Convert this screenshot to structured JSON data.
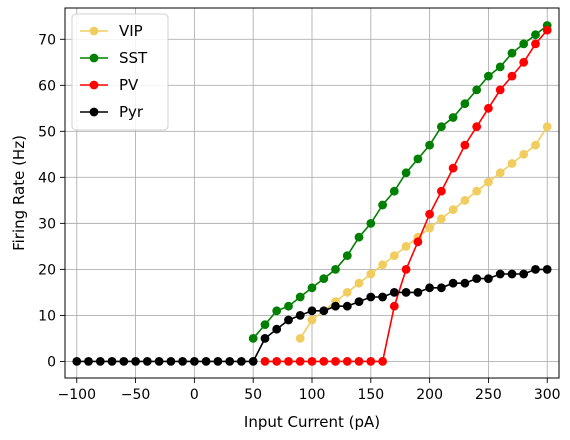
{
  "chart_data": {
    "type": "line",
    "xlabel": "Input Current (pA)",
    "ylabel": "Firing Rate (Hz)",
    "xlim": [
      -110,
      310
    ],
    "ylim": [
      -3.6,
      76.8
    ],
    "xticks": [
      -100,
      -50,
      0,
      50,
      100,
      150,
      200,
      250,
      300
    ],
    "xtick_labels": [
      "−100",
      "−50",
      "0",
      "50",
      "100",
      "150",
      "200",
      "250",
      "300"
    ],
    "yticks": [
      0,
      10,
      20,
      30,
      40,
      50,
      60,
      70
    ],
    "ytick_labels": [
      "0",
      "10",
      "20",
      "30",
      "40",
      "50",
      "60",
      "70"
    ],
    "grid": true,
    "legend_position": "top-left",
    "series": [
      {
        "name": "VIP",
        "color": "#f0cd5e",
        "points": [
          [
            90,
            5
          ],
          [
            100,
            9
          ],
          [
            110,
            11
          ],
          [
            120,
            13
          ],
          [
            130,
            15
          ],
          [
            140,
            17
          ],
          [
            150,
            19
          ],
          [
            160,
            21
          ],
          [
            170,
            23
          ],
          [
            180,
            25
          ],
          [
            190,
            27
          ],
          [
            200,
            29
          ],
          [
            210,
            31
          ],
          [
            220,
            33
          ],
          [
            230,
            35
          ],
          [
            240,
            37
          ],
          [
            250,
            39
          ],
          [
            260,
            41
          ],
          [
            270,
            43
          ],
          [
            280,
            45
          ],
          [
            290,
            47
          ],
          [
            300,
            51
          ]
        ]
      },
      {
        "name": "SST",
        "color": "#008000",
        "points": [
          [
            50,
            5
          ],
          [
            60,
            8
          ],
          [
            70,
            11
          ],
          [
            80,
            12
          ],
          [
            90,
            14
          ],
          [
            100,
            16
          ],
          [
            110,
            18
          ],
          [
            120,
            20
          ],
          [
            130,
            23
          ],
          [
            140,
            27
          ],
          [
            150,
            30
          ],
          [
            160,
            34
          ],
          [
            170,
            37
          ],
          [
            180,
            41
          ],
          [
            190,
            44
          ],
          [
            200,
            47
          ],
          [
            210,
            51
          ],
          [
            220,
            53
          ],
          [
            230,
            56
          ],
          [
            240,
            59
          ],
          [
            250,
            62
          ],
          [
            260,
            64
          ],
          [
            270,
            67
          ],
          [
            280,
            69
          ],
          [
            290,
            71
          ],
          [
            300,
            73
          ]
        ]
      },
      {
        "name": "PV",
        "color": "#ff0000",
        "points": [
          [
            60,
            0
          ],
          [
            70,
            0
          ],
          [
            80,
            0
          ],
          [
            90,
            0
          ],
          [
            100,
            0
          ],
          [
            110,
            0
          ],
          [
            120,
            0
          ],
          [
            130,
            0
          ],
          [
            140,
            0
          ],
          [
            150,
            0
          ],
          [
            160,
            0
          ],
          [
            170,
            12
          ],
          [
            180,
            20
          ],
          [
            190,
            26
          ],
          [
            200,
            32
          ],
          [
            210,
            37
          ],
          [
            220,
            42
          ],
          [
            230,
            47
          ],
          [
            240,
            51
          ],
          [
            250,
            55
          ],
          [
            260,
            59
          ],
          [
            270,
            62
          ],
          [
            280,
            65
          ],
          [
            290,
            69
          ],
          [
            300,
            72
          ]
        ]
      },
      {
        "name": "Pyr",
        "color": "#000000",
        "points": [
          [
            -100,
            0
          ],
          [
            -90,
            0
          ],
          [
            -80,
            0
          ],
          [
            -70,
            0
          ],
          [
            -60,
            0
          ],
          [
            -50,
            0
          ],
          [
            -40,
            0
          ],
          [
            -30,
            0
          ],
          [
            -20,
            0
          ],
          [
            -10,
            0
          ],
          [
            0,
            0
          ],
          [
            10,
            0
          ],
          [
            20,
            0
          ],
          [
            30,
            0
          ],
          [
            40,
            0
          ],
          [
            50,
            0
          ],
          [
            60,
            5
          ],
          [
            70,
            7
          ],
          [
            80,
            9
          ],
          [
            90,
            10
          ],
          [
            100,
            11
          ],
          [
            110,
            11
          ],
          [
            120,
            12
          ],
          [
            130,
            12
          ],
          [
            140,
            13
          ],
          [
            150,
            14
          ],
          [
            160,
            14
          ],
          [
            170,
            15
          ],
          [
            180,
            15
          ],
          [
            190,
            15
          ],
          [
            200,
            16
          ],
          [
            210,
            16
          ],
          [
            220,
            17
          ],
          [
            230,
            17
          ],
          [
            240,
            18
          ],
          [
            250,
            18
          ],
          [
            260,
            19
          ],
          [
            270,
            19
          ],
          [
            280,
            19
          ],
          [
            290,
            20
          ],
          [
            300,
            20
          ]
        ]
      }
    ]
  }
}
